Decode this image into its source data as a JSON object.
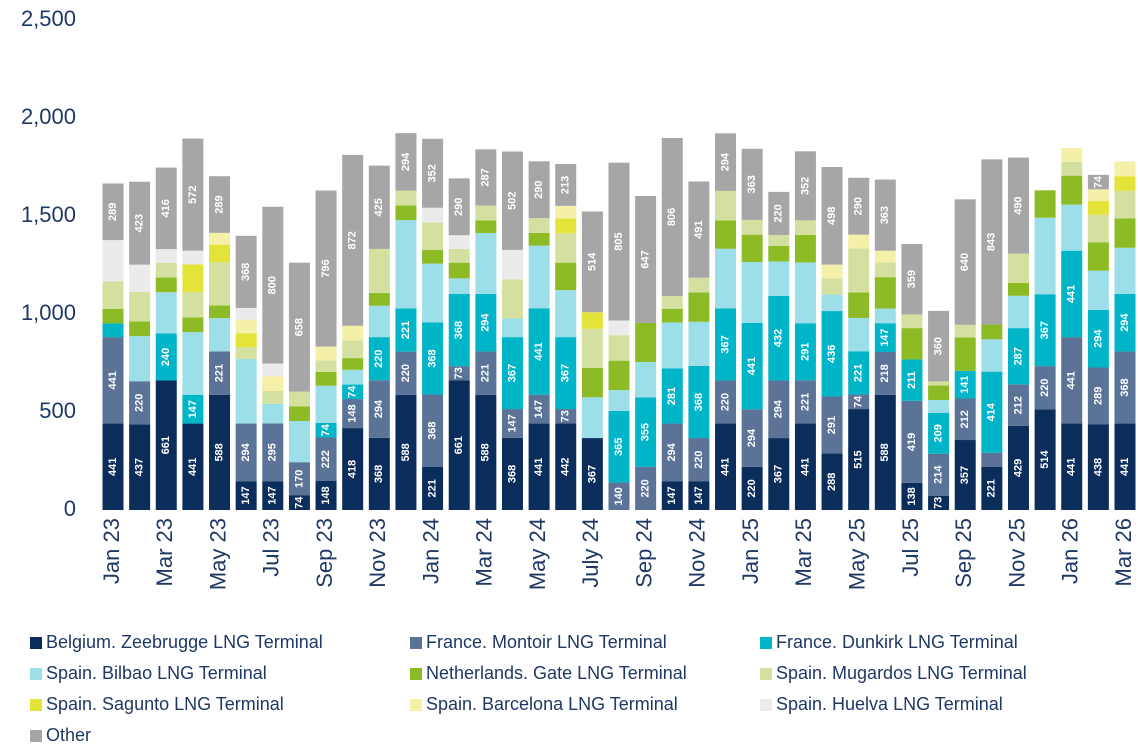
{
  "chart_data": {
    "type": "stacked_bar",
    "categories": [
      "Jan 23",
      null,
      "Mar 23",
      null,
      "May 23",
      null,
      "Jul 23",
      null,
      "Sep 23",
      null,
      "Nov 23",
      null,
      "Jan 24",
      null,
      "Mar 24",
      null,
      "May 24",
      null,
      "July 24",
      null,
      "Sep 24",
      null,
      "Nov 24",
      null,
      "Jan 25",
      null,
      "Mar 25",
      null,
      "May 25",
      null,
      "Jul 25",
      null,
      "Sep 25",
      null,
      "Nov 25",
      null,
      "Jan 26",
      null,
      "Mar 26"
    ],
    "series": [
      {
        "name": "Belgium. Zeebrugge LNG Terminal",
        "color": "#0b2d5b",
        "values": [
          441,
          437,
          661,
          441,
          588,
          147,
          147,
          74,
          148,
          418,
          368,
          588,
          221,
          661,
          588,
          368,
          441,
          442,
          367,
          0,
          0,
          147,
          147,
          441,
          220,
          367,
          441,
          288,
          515,
          588,
          138,
          73,
          357,
          221,
          429,
          514,
          441,
          438,
          441
        ]
      },
      {
        "name": "France. Montoir LNG Terminal",
        "color": "#5a7396",
        "values": [
          441,
          220,
          0,
          0,
          221,
          294,
          295,
          170,
          222,
          148,
          294,
          220,
          368,
          73,
          221,
          147,
          147,
          73,
          0,
          140,
          220,
          294,
          220,
          220,
          294,
          294,
          221,
          291,
          74,
          218,
          419,
          214,
          212,
          71,
          212,
          220,
          441,
          289,
          368
        ]
      },
      {
        "name": "France. Dunkirk LNG Terminal",
        "color": "#00b5c8",
        "values": [
          70,
          0,
          240,
          147,
          0,
          0,
          0,
          0,
          74,
          74,
          220,
          221,
          368,
          368,
          294,
          367,
          441,
          367,
          0,
          365,
          355,
          281,
          368,
          367,
          441,
          432,
          291,
          436,
          221,
          147,
          211,
          209,
          141,
          414,
          287,
          367,
          441,
          294,
          294
        ]
      },
      {
        "name": "Spain. Bilbao LNG Terminal",
        "color": "#9ddfe8",
        "values": [
          0,
          230,
          210,
          320,
          170,
          330,
          100,
          210,
          190,
          75,
          160,
          450,
          300,
          80,
          310,
          95,
          320,
          240,
          208,
          107,
          180,
          235,
          225,
          305,
          310,
          175,
          310,
          85,
          170,
          75,
          0,
          65,
          0,
          165,
          165,
          390,
          235,
          200,
          235
        ]
      },
      {
        "name": "Netherlands. Gate LNG Terminal",
        "color": "#8dbb25",
        "values": [
          75,
          75,
          75,
          75,
          65,
          0,
          0,
          75,
          70,
          60,
          65,
          75,
          70,
          80,
          65,
          0,
          65,
          140,
          150,
          150,
          200,
          70,
          150,
          145,
          140,
          80,
          140,
          0,
          130,
          160,
          160,
          75,
          170,
          75,
          65,
          140,
          148,
          145,
          150
        ]
      },
      {
        "name": "Spain. Mugardos LNG Terminal",
        "color": "#d4e0a0",
        "values": [
          140,
          150,
          75,
          130,
          220,
          60,
          65,
          75,
          60,
          90,
          225,
          75,
          140,
          70,
          75,
          200,
          75,
          150,
          200,
          130,
          0,
          65,
          75,
          150,
          75,
          55,
          75,
          82,
          225,
          75,
          70,
          20,
          65,
          0,
          150,
          0,
          70,
          140,
          140
        ]
      },
      {
        "name": "Spain. Sagunto LNG Terminal",
        "color": "#e3e33a",
        "values": [
          0,
          0,
          0,
          140,
          90,
          70,
          0,
          0,
          0,
          0,
          0,
          0,
          0,
          0,
          0,
          0,
          0,
          75,
          84,
          0,
          0,
          0,
          0,
          0,
          0,
          0,
          0,
          0,
          0,
          0,
          0,
          0,
          0,
          0,
          0,
          0,
          0,
          70,
          75
        ]
      },
      {
        "name": "Spain. Barcelona LNG Terminal",
        "color": "#f4f0a8",
        "values": [
          0,
          0,
          0,
          0,
          60,
          70,
          75,
          0,
          70,
          75,
          0,
          0,
          0,
          0,
          0,
          0,
          0,
          65,
          0,
          0,
          0,
          0,
          0,
          0,
          0,
          0,
          0,
          70,
          70,
          60,
          0,
          0,
          0,
          0,
          0,
          0,
          70,
          60,
          75
        ]
      },
      {
        "name": "Spain. Huelva LNG Terminal",
        "color": "#ebebeb",
        "values": [
          210,
          140,
          70,
          70,
          0,
          60,
          65,
          0,
          0,
          0,
          0,
          0,
          75,
          70,
          0,
          150,
          0,
          0,
          0,
          75,
          0,
          0,
          0,
          0,
          0,
          0,
          0,
          0,
          0,
          0,
          0,
          0,
          0,
          0,
          0,
          0,
          0,
          0,
          0
        ]
      },
      {
        "name": "Other",
        "color": "#a6a6a6",
        "values": [
          289,
          423,
          416,
          572,
          289,
          368,
          800,
          658,
          796,
          872,
          425,
          294,
          352,
          290,
          287,
          502,
          290,
          213,
          514,
          805,
          647,
          806,
          491,
          294,
          363,
          220,
          352,
          498,
          290,
          363,
          359,
          360,
          640,
          843,
          490,
          0,
          0,
          74,
          0
        ]
      }
    ],
    "ylim": [
      0,
      2500
    ],
    "yticks": [
      0,
      500,
      {
        "value": 1000,
        "label": "1,000"
      },
      {
        "value": 1500,
        "label": "1,500"
      },
      {
        "value": 2000,
        "label": "2,000"
      },
      {
        "value": 2500,
        "label": "2,500"
      }
    ],
    "grid": false
  }
}
